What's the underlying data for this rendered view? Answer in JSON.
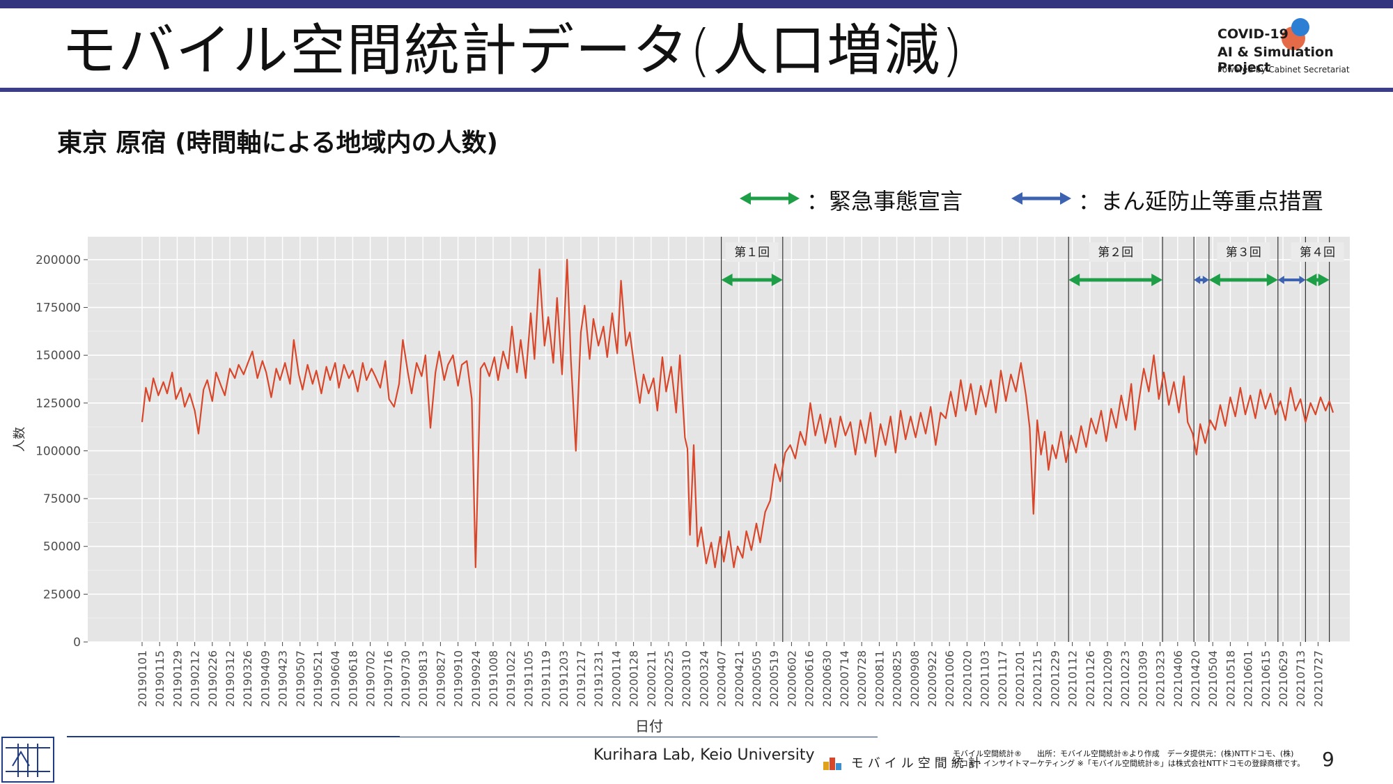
{
  "slide": {
    "title": "モバイル空間統計データ(人口増減)",
    "subtitle": "東京 原宿 (時間軸による地域内の人数)",
    "page_number": "9",
    "colors": {
      "bar": "#33347e",
      "line": "#d9472b",
      "emergency": "#1f9e48",
      "priority": "#3c62b0",
      "panel": "#e5e5e5"
    }
  },
  "logo": {
    "line1": "COVID-19",
    "line2": "AI & Simulation Project",
    "line3": "Powered by Cabinet Secretariat"
  },
  "legend": {
    "emergency": "：緊急事態宣言",
    "priority": "：まん延防止等重点措置"
  },
  "footer": {
    "lab": "Kurihara Lab, Keio University",
    "mark": "モバイル空間統計",
    "note_line1": "モバイル空間統計®　　出所：モバイル空間統計®より作成　データ提供元：(株)NTTドコモ、(株)",
    "note_line2": "ドコモ・インサイトマーケティング ※「モバイル空間統計®」は株式会社NTTドコモの登録商標です。"
  },
  "chart_data": {
    "type": "line",
    "xlabel": "日付",
    "ylabel": "人数",
    "ylim": [
      0,
      212000
    ],
    "yticks": [
      0,
      25000,
      50000,
      75000,
      100000,
      125000,
      150000,
      175000,
      200000
    ],
    "x_start": "20190101",
    "x_end": "20210805",
    "grid": true,
    "xtick_labels": [
      "20190101",
      "20190115",
      "20190129",
      "20190212",
      "20190226",
      "20190312",
      "20190326",
      "20190409",
      "20190423",
      "20190507",
      "20190521",
      "20190604",
      "20190618",
      "20190702",
      "20190716",
      "20190730",
      "20190813",
      "20190827",
      "20190910",
      "20190924",
      "20191008",
      "20191022",
      "20191105",
      "20191119",
      "20191203",
      "20191217",
      "20191231",
      "20200114",
      "20200128",
      "20200211",
      "20200225",
      "20200310",
      "20200324",
      "20200407",
      "20200421",
      "20200505",
      "20200519",
      "20200602",
      "20200616",
      "20200630",
      "20200714",
      "20200728",
      "20200811",
      "20200825",
      "20200908",
      "20200922",
      "20201006",
      "20201020",
      "20201103",
      "20201117",
      "20201201",
      "20201215",
      "20201229",
      "20210112",
      "20210126",
      "20210209",
      "20210223",
      "20210309",
      "20210323",
      "20210406",
      "20210420",
      "20210504",
      "20210518",
      "20210601",
      "20210615",
      "20210629",
      "20210713",
      "20210727"
    ],
    "series": [
      {
        "values": [
          [
            0,
            115000
          ],
          [
            3,
            133000
          ],
          [
            6,
            126000
          ],
          [
            9,
            138000
          ],
          [
            13,
            129000
          ],
          [
            17,
            136000
          ],
          [
            20,
            130000
          ],
          [
            24,
            141000
          ],
          [
            27,
            127000
          ],
          [
            31,
            133000
          ],
          [
            34,
            123000
          ],
          [
            38,
            130000
          ],
          [
            42,
            121000
          ],
          [
            45,
            109000
          ],
          [
            49,
            132000
          ],
          [
            52,
            137000
          ],
          [
            56,
            126000
          ],
          [
            59,
            141000
          ],
          [
            63,
            134000
          ],
          [
            66,
            129000
          ],
          [
            70,
            143000
          ],
          [
            74,
            138000
          ],
          [
            77,
            145000
          ],
          [
            81,
            140000
          ],
          [
            85,
            147000
          ],
          [
            88,
            152000
          ],
          [
            92,
            138000
          ],
          [
            96,
            147000
          ],
          [
            99,
            141000
          ],
          [
            103,
            128000
          ],
          [
            107,
            143000
          ],
          [
            110,
            137000
          ],
          [
            114,
            146000
          ],
          [
            118,
            135000
          ],
          [
            121,
            158000
          ],
          [
            125,
            140000
          ],
          [
            128,
            132000
          ],
          [
            132,
            145000
          ],
          [
            136,
            135000
          ],
          [
            139,
            142000
          ],
          [
            143,
            130000
          ],
          [
            147,
            144000
          ],
          [
            150,
            137000
          ],
          [
            154,
            146000
          ],
          [
            157,
            133000
          ],
          [
            161,
            145000
          ],
          [
            165,
            138000
          ],
          [
            168,
            142000
          ],
          [
            172,
            131000
          ],
          [
            176,
            146000
          ],
          [
            179,
            137000
          ],
          [
            183,
            143000
          ],
          [
            186,
            139000
          ],
          [
            190,
            133000
          ],
          [
            194,
            147000
          ],
          [
            197,
            127000
          ],
          [
            201,
            123000
          ],
          [
            205,
            135000
          ],
          [
            208,
            158000
          ],
          [
            212,
            141000
          ],
          [
            215,
            130000
          ],
          [
            219,
            146000
          ],
          [
            223,
            139000
          ],
          [
            226,
            150000
          ],
          [
            230,
            112000
          ],
          [
            234,
            141000
          ],
          [
            237,
            152000
          ],
          [
            241,
            137000
          ],
          [
            244,
            145000
          ],
          [
            248,
            150000
          ],
          [
            252,
            134000
          ],
          [
            255,
            145000
          ],
          [
            259,
            147000
          ],
          [
            263,
            127000
          ],
          [
            266,
            39000
          ],
          [
            270,
            143000
          ],
          [
            273,
            146000
          ],
          [
            277,
            139000
          ],
          [
            281,
            149000
          ],
          [
            284,
            137000
          ],
          [
            288,
            152000
          ],
          [
            292,
            143000
          ],
          [
            295,
            165000
          ],
          [
            299,
            141000
          ],
          [
            302,
            158000
          ],
          [
            306,
            138000
          ],
          [
            310,
            172000
          ],
          [
            313,
            148000
          ],
          [
            317,
            195000
          ],
          [
            321,
            155000
          ],
          [
            324,
            170000
          ],
          [
            328,
            146000
          ],
          [
            331,
            180000
          ],
          [
            335,
            140000
          ],
          [
            339,
            200000
          ],
          [
            342,
            148000
          ],
          [
            346,
            100000
          ],
          [
            350,
            162000
          ],
          [
            353,
            176000
          ],
          [
            357,
            148000
          ],
          [
            360,
            169000
          ],
          [
            364,
            155000
          ],
          [
            368,
            165000
          ],
          [
            371,
            149000
          ],
          [
            375,
            172000
          ],
          [
            379,
            151000
          ],
          [
            382,
            189000
          ],
          [
            386,
            155000
          ],
          [
            389,
            162000
          ],
          [
            393,
            142000
          ],
          [
            397,
            125000
          ],
          [
            400,
            140000
          ],
          [
            404,
            130000
          ],
          [
            408,
            138000
          ],
          [
            411,
            121000
          ],
          [
            415,
            149000
          ],
          [
            418,
            131000
          ],
          [
            422,
            144000
          ],
          [
            426,
            120000
          ],
          [
            429,
            150000
          ],
          [
            433,
            107000
          ],
          [
            435,
            101000
          ],
          [
            437,
            56000
          ],
          [
            440,
            103000
          ],
          [
            443,
            50000
          ],
          [
            446,
            60000
          ],
          [
            450,
            41000
          ],
          [
            454,
            52000
          ],
          [
            457,
            39000
          ],
          [
            461,
            55000
          ],
          [
            464,
            42000
          ],
          [
            468,
            58000
          ],
          [
            472,
            39000
          ],
          [
            475,
            50000
          ],
          [
            479,
            44000
          ],
          [
            482,
            58000
          ],
          [
            486,
            48000
          ],
          [
            490,
            62000
          ],
          [
            493,
            52000
          ],
          [
            497,
            68000
          ],
          [
            501,
            74000
          ],
          [
            505,
            93000
          ],
          [
            509,
            84000
          ],
          [
            513,
            99000
          ],
          [
            517,
            103000
          ],
          [
            521,
            96000
          ],
          [
            525,
            110000
          ],
          [
            529,
            103000
          ],
          [
            533,
            125000
          ],
          [
            537,
            108000
          ],
          [
            541,
            119000
          ],
          [
            545,
            104000
          ],
          [
            549,
            117000
          ],
          [
            553,
            102000
          ],
          [
            557,
            118000
          ],
          [
            561,
            108000
          ],
          [
            565,
            115000
          ],
          [
            569,
            98000
          ],
          [
            573,
            116000
          ],
          [
            577,
            104000
          ],
          [
            581,
            120000
          ],
          [
            585,
            97000
          ],
          [
            589,
            114000
          ],
          [
            593,
            103000
          ],
          [
            597,
            118000
          ],
          [
            601,
            99000
          ],
          [
            605,
            121000
          ],
          [
            609,
            106000
          ],
          [
            613,
            118000
          ],
          [
            617,
            107000
          ],
          [
            621,
            120000
          ],
          [
            625,
            109000
          ],
          [
            629,
            123000
          ],
          [
            633,
            103000
          ],
          [
            637,
            120000
          ],
          [
            641,
            117000
          ],
          [
            645,
            131000
          ],
          [
            649,
            118000
          ],
          [
            653,
            137000
          ],
          [
            657,
            121000
          ],
          [
            661,
            135000
          ],
          [
            665,
            119000
          ],
          [
            669,
            134000
          ],
          [
            673,
            123000
          ],
          [
            677,
            137000
          ],
          [
            681,
            120000
          ],
          [
            685,
            142000
          ],
          [
            689,
            126000
          ],
          [
            693,
            140000
          ],
          [
            697,
            131000
          ],
          [
            701,
            146000
          ],
          [
            705,
            129000
          ],
          [
            708,
            112000
          ],
          [
            711,
            67000
          ],
          [
            714,
            116000
          ],
          [
            717,
            98000
          ],
          [
            720,
            110000
          ],
          [
            723,
            90000
          ],
          [
            726,
            103000
          ],
          [
            729,
            96000
          ],
          [
            733,
            110000
          ],
          [
            737,
            94000
          ],
          [
            741,
            108000
          ],
          [
            745,
            99000
          ],
          [
            749,
            113000
          ],
          [
            753,
            102000
          ],
          [
            757,
            117000
          ],
          [
            761,
            109000
          ],
          [
            765,
            121000
          ],
          [
            769,
            105000
          ],
          [
            773,
            122000
          ],
          [
            777,
            112000
          ],
          [
            781,
            129000
          ],
          [
            785,
            116000
          ],
          [
            789,
            135000
          ],
          [
            792,
            111000
          ],
          [
            795,
            126000
          ],
          [
            799,
            143000
          ],
          [
            803,
            131000
          ],
          [
            807,
            150000
          ],
          [
            811,
            127000
          ],
          [
            815,
            141000
          ],
          [
            819,
            124000
          ],
          [
            823,
            136000
          ],
          [
            827,
            120000
          ],
          [
            831,
            139000
          ],
          [
            834,
            115000
          ],
          [
            838,
            109000
          ],
          [
            841,
            98000
          ],
          [
            844,
            114000
          ],
          [
            848,
            104000
          ],
          [
            852,
            116000
          ],
          [
            856,
            111000
          ],
          [
            860,
            124000
          ],
          [
            864,
            113000
          ],
          [
            868,
            128000
          ],
          [
            872,
            118000
          ],
          [
            876,
            133000
          ],
          [
            880,
            119000
          ],
          [
            884,
            129000
          ],
          [
            888,
            117000
          ],
          [
            892,
            132000
          ],
          [
            896,
            122000
          ],
          [
            900,
            130000
          ],
          [
            904,
            119000
          ],
          [
            908,
            126000
          ],
          [
            912,
            116000
          ],
          [
            916,
            133000
          ],
          [
            920,
            121000
          ],
          [
            924,
            127000
          ],
          [
            928,
            115000
          ],
          [
            932,
            125000
          ],
          [
            936,
            119000
          ],
          [
            940,
            128000
          ],
          [
            944,
            121000
          ],
          [
            947,
            126000
          ],
          [
            950,
            120000
          ]
        ]
      }
    ],
    "periods": [
      {
        "label": "第１回",
        "kind": "emergency",
        "start": 462,
        "end": 511
      },
      {
        "label": "第２回",
        "kind": "emergency",
        "start": 739,
        "end": 814
      },
      {
        "kind": "priority",
        "start": 839,
        "end": 851
      },
      {
        "label": "第３回",
        "kind": "emergency",
        "start": 851,
        "end": 906
      },
      {
        "kind": "priority",
        "start": 906,
        "end": 928
      },
      {
        "label": "第４回",
        "kind": "emergency",
        "start": 928,
        "end": 947
      }
    ]
  }
}
